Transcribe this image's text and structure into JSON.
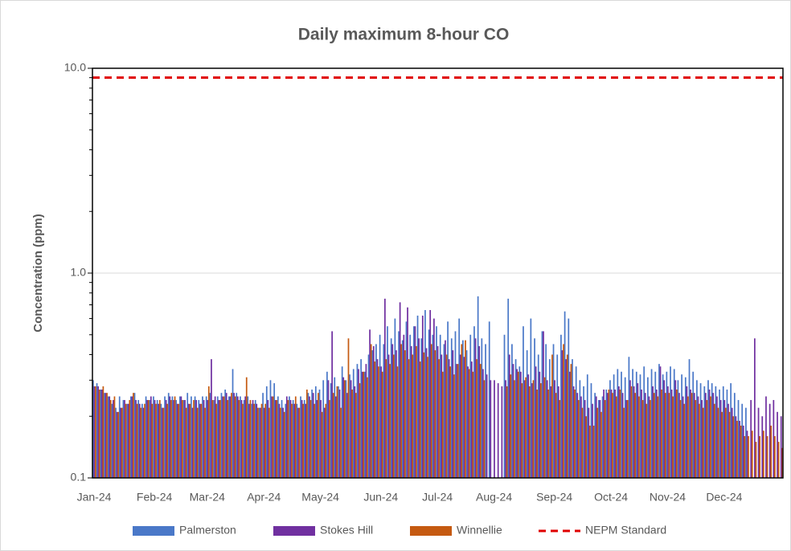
{
  "chart_data": {
    "type": "bar",
    "title": "Daily maximum 8-hour CO",
    "ylabel": "Concentration (ppm)",
    "log_y": true,
    "grid": true,
    "legend": "bottom",
    "ylim": [
      0.1,
      10
    ],
    "yticks": [
      0.1,
      {
        "value": 1,
        "label": "1.0"
      },
      {
        "value": 10,
        "label": "10.0"
      }
    ],
    "yminor": [
      0.2,
      0.3,
      0.4,
      0.5,
      0.6,
      0.7,
      0.8,
      0.9,
      2,
      3,
      4,
      5,
      6,
      7,
      8,
      9
    ],
    "categories": [
      "Jan-24",
      null,
      null,
      null,
      null,
      null,
      null,
      null,
      null,
      null,
      null,
      null,
      null,
      null,
      null,
      null,
      "Feb-24",
      null,
      null,
      null,
      null,
      null,
      null,
      null,
      null,
      null,
      null,
      null,
      null,
      null,
      "Mar-24",
      null,
      null,
      null,
      null,
      null,
      null,
      null,
      null,
      null,
      null,
      null,
      null,
      null,
      null,
      "Apr-24",
      null,
      null,
      null,
      null,
      null,
      null,
      null,
      null,
      null,
      null,
      null,
      null,
      null,
      null,
      "May-24",
      null,
      null,
      null,
      null,
      null,
      null,
      null,
      null,
      null,
      null,
      null,
      null,
      null,
      null,
      null,
      "Jun-24",
      null,
      null,
      null,
      null,
      null,
      null,
      null,
      null,
      null,
      null,
      null,
      null,
      null,
      null,
      "Jul-24",
      null,
      null,
      null,
      null,
      null,
      null,
      null,
      null,
      null,
      null,
      null,
      null,
      null,
      null,
      "Aug-24",
      null,
      null,
      null,
      null,
      null,
      null,
      null,
      null,
      null,
      null,
      null,
      null,
      null,
      null,
      null,
      "Sep-24",
      null,
      null,
      null,
      null,
      null,
      null,
      null,
      null,
      null,
      null,
      null,
      null,
      null,
      null,
      "Oct-24",
      null,
      null,
      null,
      null,
      null,
      null,
      null,
      null,
      null,
      null,
      null,
      null,
      null,
      null,
      "Nov-24",
      null,
      null,
      null,
      null,
      null,
      null,
      null,
      null,
      null,
      null,
      null,
      null,
      null,
      null,
      "Dec-24",
      null,
      null,
      null,
      null,
      null,
      null,
      null,
      null,
      null,
      null,
      null,
      null,
      null,
      null,
      null
    ],
    "series": [
      {
        "name": "Palmerston",
        "color": "#4a78c8",
        "values": [
          0.3,
          0.29,
          0.27,
          0.26,
          0.25,
          0.23,
          0.22,
          0.25,
          0.24,
          0.23,
          0.25,
          0.26,
          0.24,
          0.23,
          0.25,
          0.24,
          0.25,
          0.24,
          0.23,
          0.25,
          0.26,
          0.25,
          0.24,
          0.25,
          0.24,
          0.26,
          0.25,
          0.25,
          0.24,
          0.25,
          0.25,
          0.26,
          0.24,
          0.25,
          0.26,
          0.27,
          0.25,
          0.34,
          0.26,
          0.25,
          0.24,
          0.25,
          0.23,
          0.24,
          0.22,
          0.26,
          0.28,
          0.3,
          0.29,
          0.25,
          0.24,
          0.23,
          0.25,
          0.24,
          0.23,
          0.25,
          0.24,
          0.26,
          0.27,
          0.28,
          0.27,
          0.3,
          0.33,
          0.29,
          0.31,
          0.28,
          0.35,
          0.3,
          0.32,
          0.34,
          0.36,
          0.38,
          0.33,
          0.4,
          0.42,
          0.45,
          0.5,
          0.45,
          0.55,
          0.48,
          0.6,
          0.52,
          0.47,
          0.58,
          0.5,
          0.55,
          0.62,
          0.48,
          0.66,
          0.53,
          0.5,
          0.55,
          0.5,
          0.45,
          0.58,
          0.48,
          0.52,
          0.6,
          0.47,
          0.42,
          0.5,
          0.55,
          0.77,
          0.48,
          0.45,
          0.58,
          null,
          null,
          null,
          0.5,
          0.75,
          0.45,
          0.38,
          0.35,
          0.55,
          0.42,
          0.6,
          0.48,
          0.4,
          0.52,
          0.45,
          0.38,
          0.45,
          0.4,
          0.5,
          0.65,
          0.6,
          0.38,
          0.35,
          0.3,
          0.28,
          0.32,
          0.29,
          0.26,
          0.24,
          0.25,
          0.27,
          0.3,
          0.32,
          0.34,
          0.33,
          0.31,
          0.39,
          0.34,
          0.33,
          0.32,
          0.35,
          0.31,
          0.34,
          0.33,
          0.36,
          0.32,
          0.33,
          0.35,
          0.34,
          0.3,
          0.32,
          0.31,
          0.38,
          0.33,
          0.3,
          0.29,
          0.28,
          0.3,
          0.29,
          0.28,
          0.27,
          0.28,
          0.27,
          0.29,
          0.26,
          0.24,
          0.23,
          0.22,
          null,
          null,
          null,
          null,
          null,
          null,
          null,
          null,
          null
        ]
      },
      {
        "name": "Stokes Hill",
        "color": "#7030a0",
        "values": [
          0.28,
          0.28,
          0.27,
          0.26,
          0.25,
          0.24,
          0.21,
          0.22,
          0.24,
          0.23,
          0.25,
          0.24,
          0.23,
          0.22,
          0.24,
          0.25,
          0.24,
          0.23,
          0.22,
          0.24,
          0.25,
          0.24,
          0.23,
          0.25,
          0.24,
          0.23,
          0.22,
          0.24,
          0.23,
          0.24,
          0.24,
          0.38,
          0.25,
          0.24,
          0.25,
          0.26,
          0.25,
          0.26,
          0.25,
          0.24,
          0.25,
          0.23,
          0.24,
          0.23,
          0.22,
          0.22,
          0.24,
          0.25,
          0.24,
          0.23,
          0.22,
          0.25,
          0.24,
          0.23,
          0.22,
          0.24,
          0.23,
          0.25,
          0.26,
          0.24,
          0.24,
          0.22,
          0.3,
          0.52,
          0.25,
          0.27,
          0.31,
          0.26,
          0.3,
          0.28,
          0.34,
          0.33,
          0.36,
          0.53,
          0.44,
          0.38,
          0.35,
          0.75,
          0.4,
          0.45,
          0.42,
          0.72,
          0.5,
          0.68,
          0.44,
          0.55,
          0.48,
          0.62,
          0.43,
          0.66,
          0.6,
          0.44,
          0.4,
          0.47,
          0.38,
          0.42,
          0.36,
          0.4,
          0.39,
          0.35,
          0.37,
          0.48,
          0.44,
          0.34,
          0.32,
          0.3,
          0.3,
          0.29,
          0.28,
          0.3,
          0.4,
          0.36,
          0.34,
          0.33,
          0.3,
          0.32,
          0.29,
          0.35,
          0.33,
          0.52,
          0.3,
          0.28,
          0.3,
          0.28,
          0.42,
          0.38,
          0.33,
          0.28,
          0.26,
          0.25,
          0.24,
          0.22,
          0.23,
          0.25,
          0.24,
          0.27,
          0.26,
          0.27,
          0.27,
          0.28,
          0.26,
          0.24,
          0.3,
          0.28,
          0.29,
          0.27,
          0.26,
          0.25,
          0.28,
          0.27,
          0.35,
          0.3,
          0.28,
          0.27,
          0.3,
          0.26,
          0.25,
          0.28,
          0.27,
          0.26,
          0.25,
          0.24,
          0.26,
          0.27,
          0.26,
          0.25,
          0.24,
          0.24,
          0.23,
          0.22,
          0.2,
          0.19,
          0.18,
          0.17,
          0.24,
          0.48,
          0.22,
          0.2,
          0.25,
          0.23,
          0.24,
          0.21,
          0.2
        ]
      },
      {
        "name": "Winnellie",
        "color": "#c55a11",
        "values": [
          0.28,
          0.27,
          0.28,
          0.26,
          0.24,
          0.25,
          0.21,
          0.22,
          0.23,
          0.24,
          0.26,
          0.23,
          0.22,
          0.23,
          0.24,
          0.23,
          0.23,
          0.24,
          0.22,
          0.23,
          0.24,
          0.25,
          0.23,
          0.24,
          0.22,
          0.23,
          0.24,
          0.22,
          0.23,
          0.22,
          0.28,
          0.24,
          0.23,
          0.24,
          0.25,
          0.24,
          0.26,
          0.25,
          0.24,
          0.23,
          0.31,
          0.24,
          0.23,
          0.22,
          0.23,
          0.23,
          0.22,
          0.25,
          0.24,
          0.22,
          0.21,
          0.24,
          0.23,
          0.25,
          0.22,
          0.23,
          0.27,
          0.24,
          0.23,
          0.26,
          0.21,
          0.23,
          0.24,
          0.26,
          0.28,
          0.22,
          0.3,
          0.48,
          0.27,
          0.26,
          0.29,
          0.33,
          0.31,
          0.45,
          0.37,
          0.35,
          0.33,
          0.38,
          0.36,
          0.4,
          0.35,
          0.45,
          0.42,
          0.38,
          0.4,
          0.44,
          0.37,
          0.41,
          0.39,
          0.45,
          0.42,
          0.38,
          0.33,
          0.4,
          0.35,
          0.32,
          0.36,
          0.45,
          0.47,
          0.34,
          0.33,
          0.38,
          0.36,
          0.3,
          null,
          null,
          null,
          null,
          null,
          0.28,
          0.32,
          0.3,
          0.33,
          0.29,
          0.31,
          0.28,
          0.3,
          0.27,
          0.29,
          0.31,
          0.27,
          0.4,
          0.26,
          0.24,
          0.45,
          0.4,
          0.36,
          0.27,
          0.24,
          0.22,
          0.2,
          0.18,
          0.18,
          0.22,
          0.21,
          0.24,
          0.27,
          0.26,
          0.25,
          0.27,
          0.22,
          0.24,
          0.28,
          0.26,
          0.25,
          0.24,
          0.23,
          0.24,
          0.26,
          0.25,
          0.27,
          0.26,
          0.26,
          0.25,
          0.27,
          0.24,
          0.23,
          0.25,
          0.26,
          0.24,
          0.23,
          0.22,
          0.24,
          0.25,
          0.23,
          0.22,
          0.21,
          0.22,
          0.21,
          0.2,
          0.19,
          0.18,
          0.16,
          0.16,
          0.17,
          0.15,
          0.16,
          0.17,
          0.16,
          0.18,
          0.16,
          0.15,
          0.14
        ]
      }
    ],
    "reference_line": {
      "name": "NEPM Standard",
      "value": 9,
      "color": "#e00000"
    }
  }
}
